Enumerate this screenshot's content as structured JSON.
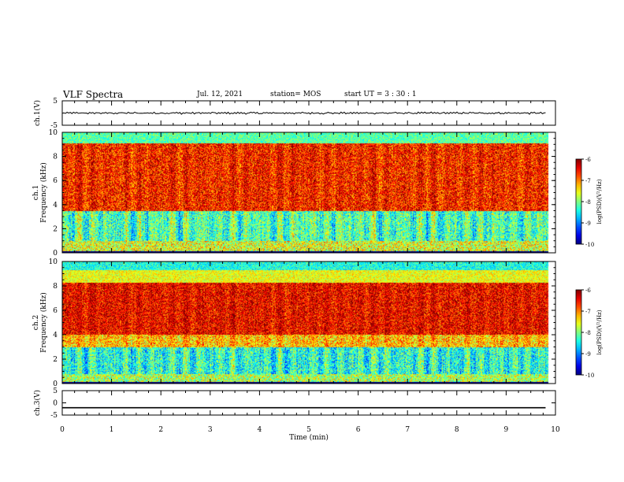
{
  "header": {
    "title": "VLF Spectra",
    "date": "Jul. 12, 2021",
    "station": "station= MOS",
    "start": "start UT = 3 : 30 : 1"
  },
  "chart_data": [
    {
      "type": "line",
      "ylabel": "ch.1(V)",
      "ylim": [
        -5,
        5
      ],
      "yticks": [
        "5",
        "-5"
      ],
      "series": [
        {
          "values": [
            -0.3,
            0.2,
            -0.4,
            0.1,
            -0.2,
            0.3,
            -0.1,
            0.2
          ]
        }
      ]
    },
    {
      "type": "heatmap",
      "ylabel": "ch.1 Frequency (kHz)",
      "ylim": [
        0,
        10
      ],
      "yticks": [
        "0",
        "2",
        "4",
        "6",
        "8",
        "10"
      ],
      "colorbar": {
        "label": "log(PSD)(V²/Hz)",
        "ticks": [
          "-6",
          "-7",
          "-8",
          "-9",
          "-10"
        ],
        "range": [
          -10,
          -6
        ]
      }
    },
    {
      "type": "heatmap",
      "ylabel": "ch.2 Frequency (kHz)",
      "ylim": [
        0,
        10
      ],
      "yticks": [
        "0",
        "2",
        "4",
        "6",
        "8",
        "10"
      ],
      "colorbar": {
        "label": "log(PSD)(V²/Hz)",
        "ticks": [
          "-6",
          "-7",
          "-8",
          "-9",
          "-10"
        ],
        "range": [
          -10,
          -6
        ]
      }
    },
    {
      "type": "line",
      "ylabel": "ch.3(V)",
      "ylim": [
        -5,
        5
      ],
      "yticks": [
        "5",
        "0",
        "-5"
      ],
      "series": [
        {
          "values": [
            -2,
            -2
          ]
        }
      ]
    },
    {
      "type": "axis",
      "xlabel": "Time (min)",
      "xlim": [
        0,
        10
      ],
      "xticks": [
        "0",
        "1",
        "2",
        "3",
        "4",
        "5",
        "6",
        "7",
        "8",
        "9",
        "10"
      ]
    }
  ]
}
